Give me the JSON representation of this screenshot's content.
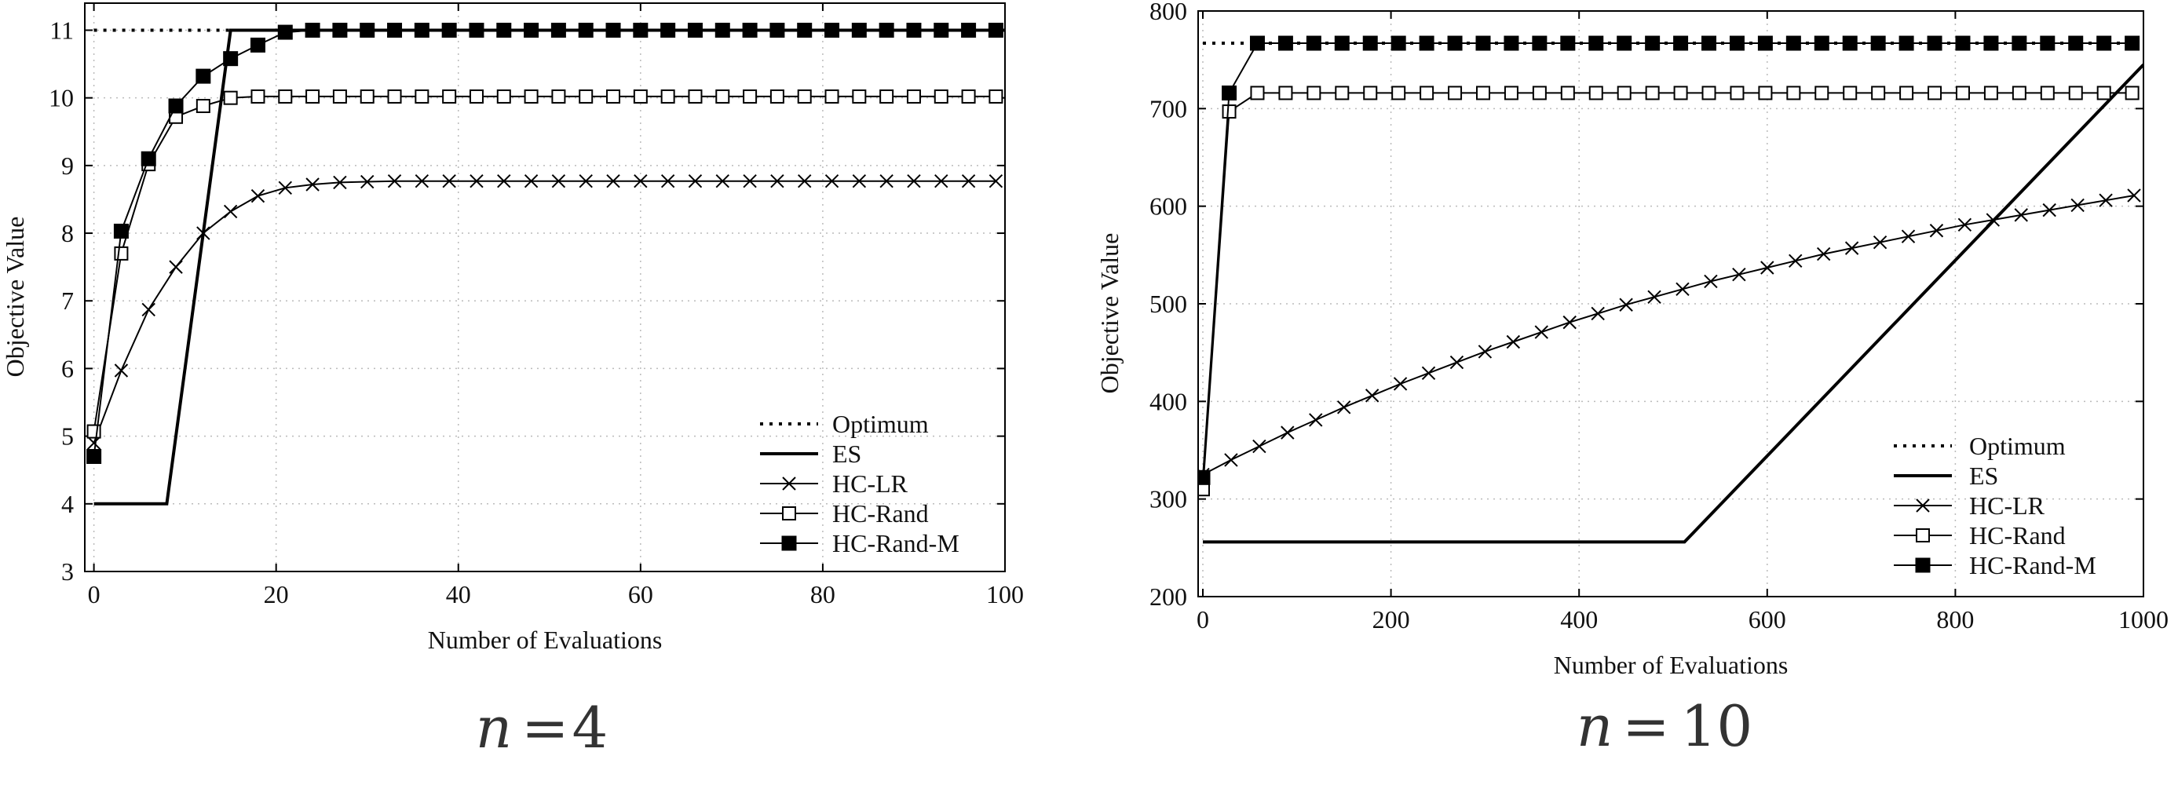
{
  "chart_data": [
    {
      "type": "line",
      "caption_var": "n",
      "caption_eq": "=",
      "caption_val": "4",
      "xlabel": "Number of Evaluations",
      "ylabel": "Objective Value",
      "xlim": [
        -1,
        100
      ],
      "ylim": [
        3,
        11.4
      ],
      "xticks": [
        0,
        20,
        40,
        60,
        80,
        100
      ],
      "yticks": [
        3,
        4,
        5,
        6,
        7,
        8,
        9,
        10,
        11
      ],
      "grid": true,
      "legend_position": "bottom-right",
      "series": [
        {
          "name": "Optimum",
          "style": "dotted",
          "marker": "none",
          "x": [
            0,
            100
          ],
          "y": [
            11,
            11
          ]
        },
        {
          "name": "ES",
          "style": "thick",
          "marker": "none",
          "x": [
            0,
            8,
            15,
            100
          ],
          "y": [
            4,
            4,
            11,
            11
          ]
        },
        {
          "name": "HC-LR",
          "style": "thin",
          "marker": "cross",
          "x": [
            0,
            3,
            6,
            9,
            12,
            15,
            18,
            21,
            24,
            27,
            30,
            33,
            36,
            39,
            42,
            45,
            48,
            51,
            54,
            57,
            60,
            63,
            66,
            69,
            72,
            75,
            78,
            81,
            84,
            87,
            90,
            93,
            96,
            99
          ],
          "y": [
            4.9,
            5.97,
            6.87,
            7.5,
            8.0,
            8.32,
            8.55,
            8.67,
            8.72,
            8.75,
            8.76,
            8.77,
            8.77,
            8.77,
            8.77,
            8.77,
            8.77,
            8.77,
            8.77,
            8.77,
            8.77,
            8.77,
            8.77,
            8.77,
            8.77,
            8.77,
            8.77,
            8.77,
            8.77,
            8.77,
            8.77,
            8.77,
            8.77,
            8.77
          ]
        },
        {
          "name": "HC-Rand",
          "style": "thin",
          "marker": "open-square",
          "x": [
            0,
            3,
            6,
            9,
            12,
            15,
            18,
            21,
            24,
            27,
            30,
            33,
            36,
            39,
            42,
            45,
            48,
            51,
            54,
            57,
            60,
            63,
            66,
            69,
            72,
            75,
            78,
            81,
            84,
            87,
            90,
            93,
            96,
            99
          ],
          "y": [
            5.07,
            7.7,
            9.02,
            9.72,
            9.88,
            10.0,
            10.02,
            10.02,
            10.02,
            10.02,
            10.02,
            10.02,
            10.02,
            10.02,
            10.02,
            10.02,
            10.02,
            10.02,
            10.02,
            10.02,
            10.02,
            10.02,
            10.02,
            10.02,
            10.02,
            10.02,
            10.02,
            10.02,
            10.02,
            10.02,
            10.02,
            10.02,
            10.02,
            10.02
          ]
        },
        {
          "name": "HC-Rand-M",
          "style": "thin",
          "marker": "filled-square",
          "x": [
            0,
            3,
            6,
            9,
            12,
            15,
            18,
            21,
            24,
            27,
            30,
            33,
            36,
            39,
            42,
            45,
            48,
            51,
            54,
            57,
            60,
            63,
            66,
            69,
            72,
            75,
            78,
            81,
            84,
            87,
            90,
            93,
            96,
            99
          ],
          "y": [
            4.7,
            8.03,
            9.1,
            9.88,
            10.32,
            10.58,
            10.78,
            10.97,
            11,
            11,
            11,
            11,
            11,
            11,
            11,
            11,
            11,
            11,
            11,
            11,
            11,
            11,
            11,
            11,
            11,
            11,
            11,
            11,
            11,
            11,
            11,
            11,
            11,
            11
          ]
        }
      ]
    },
    {
      "type": "line",
      "caption_var": "n",
      "caption_eq": "=",
      "caption_val": "10",
      "xlabel": "Number of Evaluations",
      "ylabel": "Objective Value",
      "xlim": [
        -5,
        1000
      ],
      "ylim": [
        200,
        800
      ],
      "xticks": [
        0,
        200,
        400,
        600,
        800,
        1000
      ],
      "yticks": [
        200,
        300,
        400,
        500,
        600,
        700,
        800
      ],
      "grid": true,
      "legend_position": "bottom-right",
      "series": [
        {
          "name": "Optimum",
          "style": "dotted",
          "marker": "none",
          "x": [
            0,
            1000
          ],
          "y": [
            767,
            767
          ]
        },
        {
          "name": "ES",
          "style": "thick",
          "marker": "none",
          "x": [
            0,
            512,
            1000
          ],
          "y": [
            256,
            256,
            745
          ]
        },
        {
          "name": "HC-LR",
          "style": "thin",
          "marker": "cross",
          "x": [
            0,
            30,
            60,
            90,
            120,
            150,
            180,
            210,
            240,
            270,
            300,
            330,
            360,
            390,
            420,
            450,
            480,
            510,
            540,
            570,
            600,
            630,
            660,
            690,
            720,
            750,
            780,
            810,
            840,
            870,
            900,
            930,
            960,
            990
          ],
          "y": [
            325,
            340,
            354,
            368,
            381,
            394,
            406,
            418,
            429,
            440,
            451,
            461,
            471,
            481,
            490,
            499,
            507,
            515,
            523,
            530,
            537,
            544,
            551,
            557,
            563,
            569,
            575,
            581,
            586,
            591,
            596,
            601,
            606,
            611
          ]
        },
        {
          "name": "HC-Rand",
          "style": "thin",
          "marker": "open-square",
          "x": [
            0,
            28,
            58,
            88,
            118,
            148,
            178,
            208,
            238,
            268,
            298,
            328,
            358,
            388,
            418,
            448,
            478,
            508,
            538,
            568,
            598,
            628,
            658,
            688,
            718,
            748,
            778,
            808,
            838,
            868,
            898,
            928,
            958,
            988
          ],
          "y": [
            310,
            697,
            716,
            716,
            716,
            716,
            716,
            716,
            716,
            716,
            716,
            716,
            716,
            716,
            716,
            716,
            716,
            716,
            716,
            716,
            716,
            716,
            716,
            716,
            716,
            716,
            716,
            716,
            716,
            716,
            716,
            716,
            716,
            716
          ]
        },
        {
          "name": "HC-Rand-M",
          "style": "thin",
          "marker": "filled-square",
          "x": [
            0,
            28,
            58,
            88,
            118,
            148,
            178,
            208,
            238,
            268,
            298,
            328,
            358,
            388,
            418,
            448,
            478,
            508,
            538,
            568,
            598,
            628,
            658,
            688,
            718,
            748,
            778,
            808,
            838,
            868,
            898,
            928,
            958,
            988
          ],
          "y": [
            322,
            716,
            767,
            767,
            767,
            767,
            767,
            767,
            767,
            767,
            767,
            767,
            767,
            767,
            767,
            767,
            767,
            767,
            767,
            767,
            767,
            767,
            767,
            767,
            767,
            767,
            767,
            767,
            767,
            767,
            767,
            767,
            767,
            767
          ]
        }
      ]
    }
  ]
}
